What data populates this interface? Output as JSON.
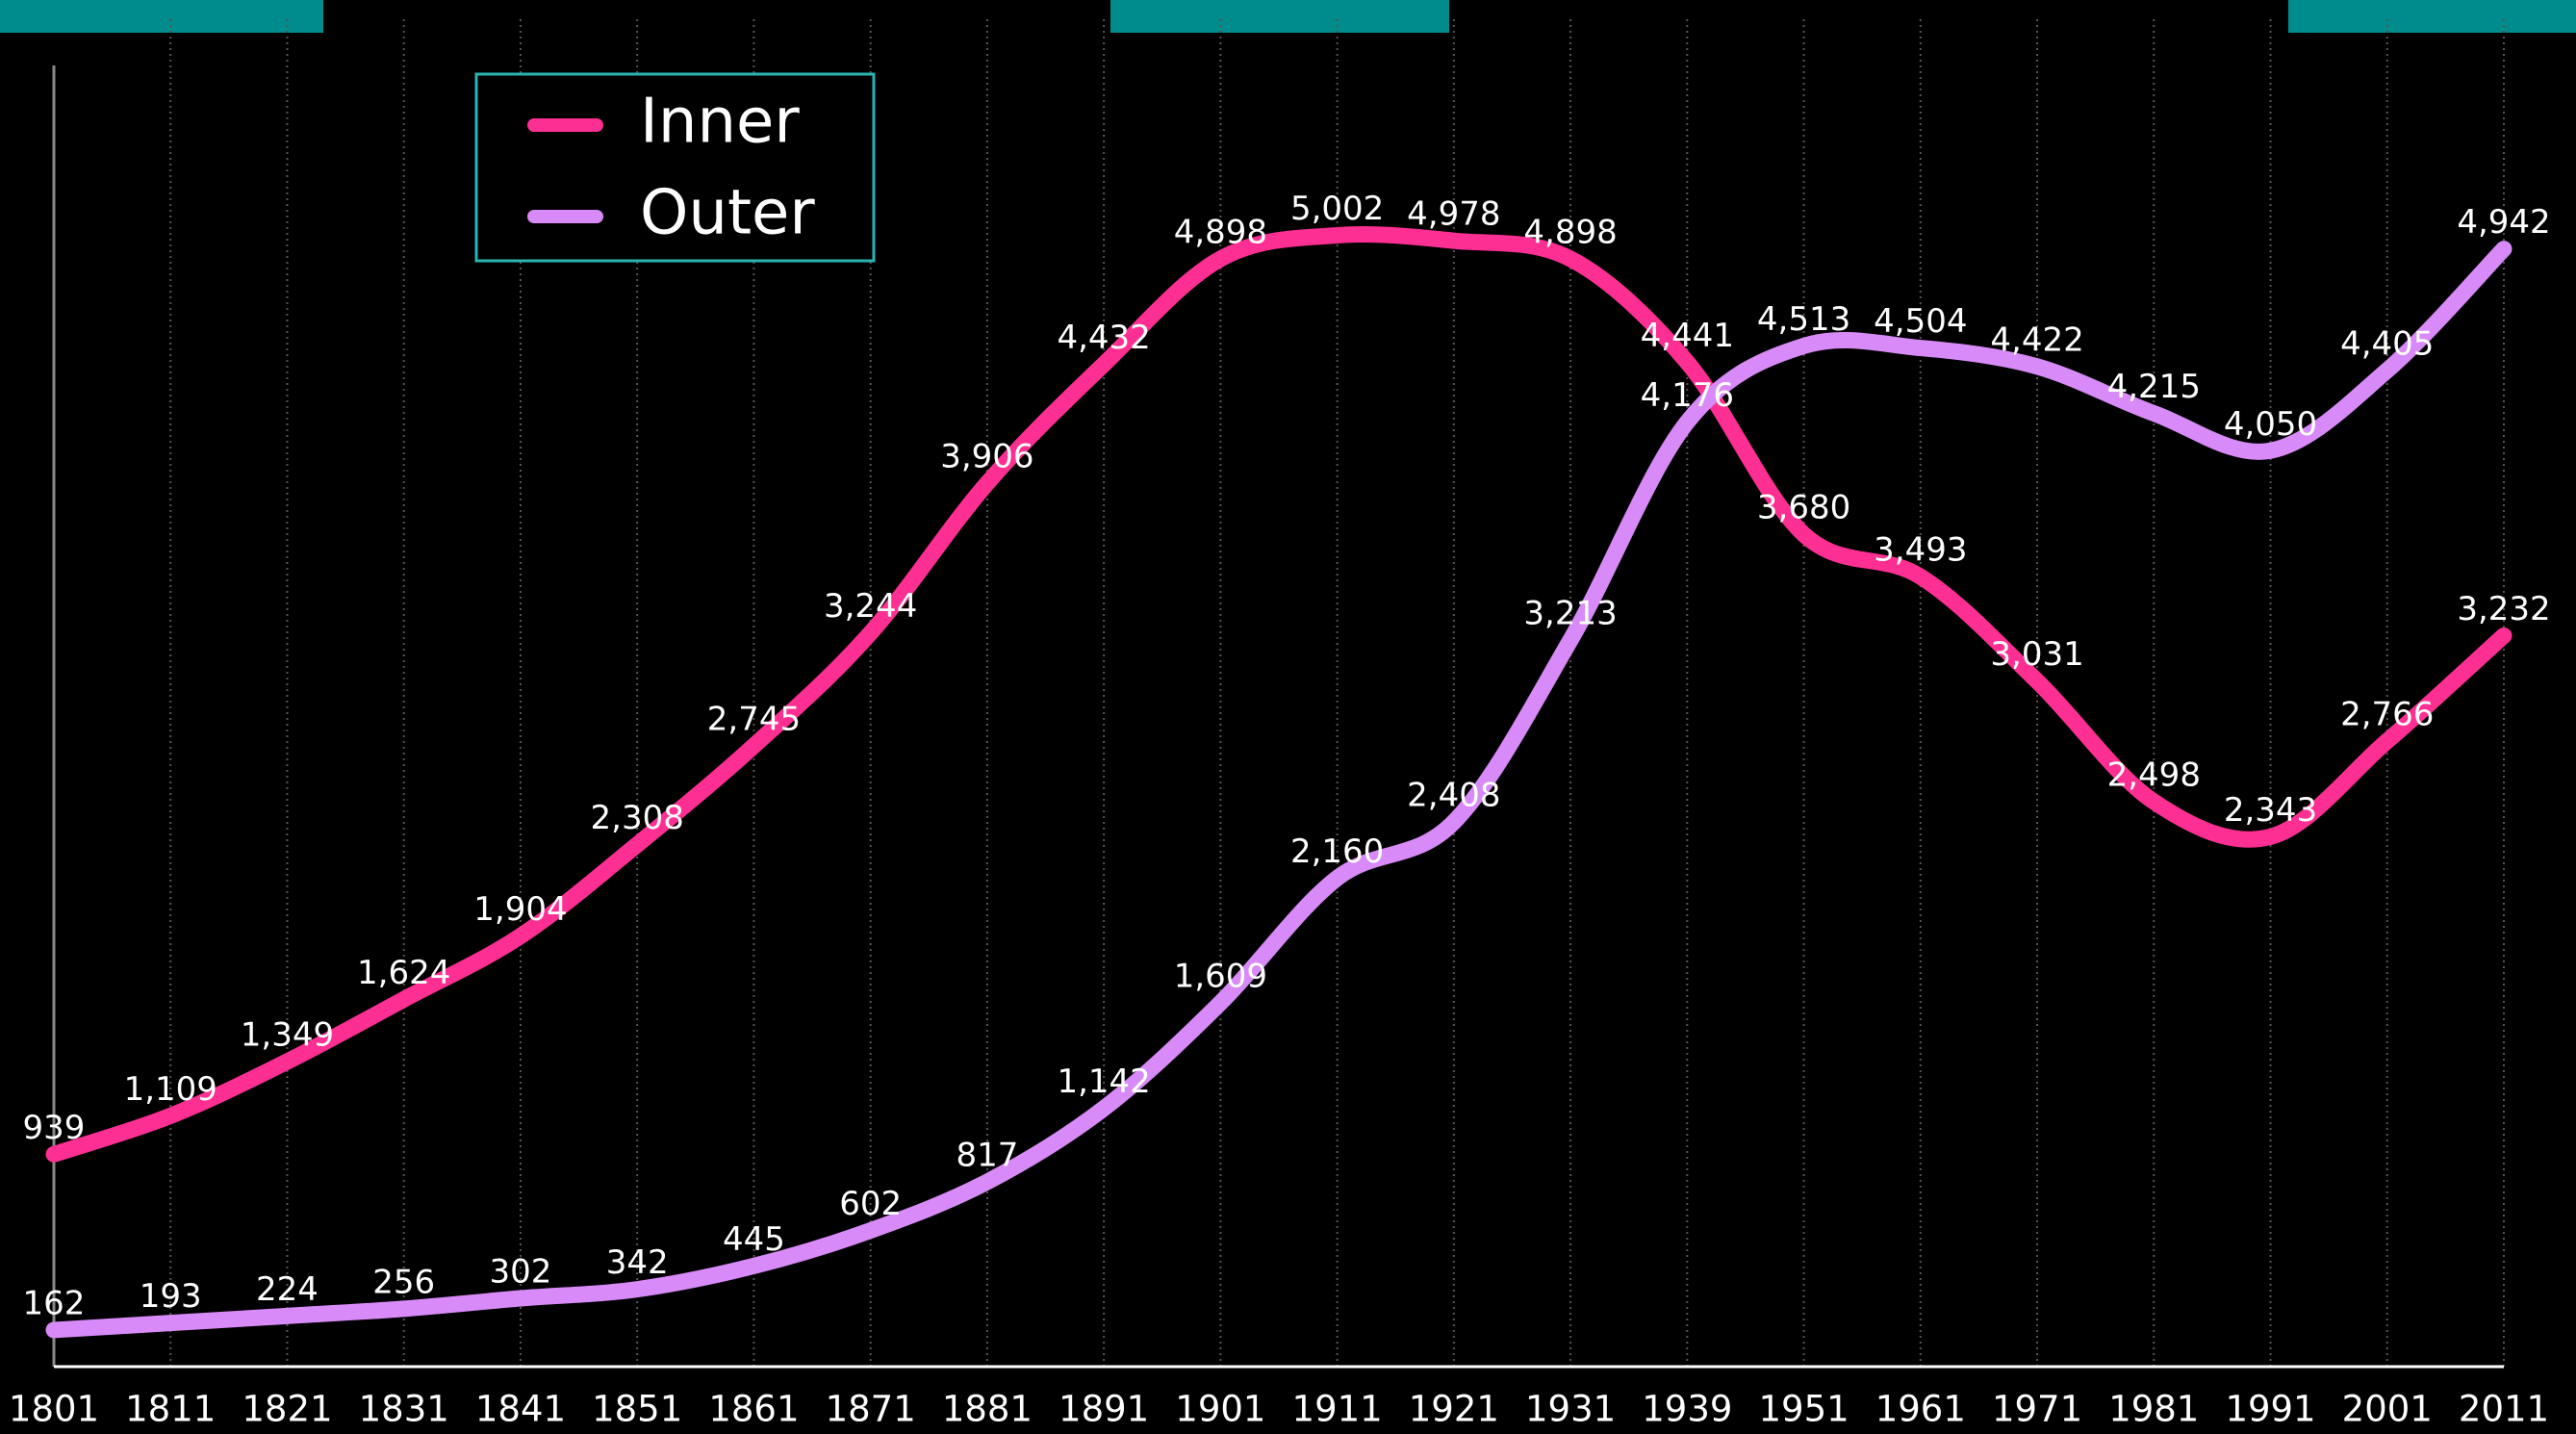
{
  "chart_data": {
    "type": "line",
    "categories": [
      "1801",
      "1811",
      "1821",
      "1831",
      "1841",
      "1851",
      "1861",
      "1871",
      "1881",
      "1891",
      "1901",
      "1911",
      "1921",
      "1931",
      "1939",
      "1951",
      "1961",
      "1971",
      "1981",
      "1991",
      "2001",
      "2011"
    ],
    "series": [
      {
        "name": "Inner",
        "color": "#fe2f92",
        "values": [
          939,
          1109,
          1349,
          1624,
          1904,
          2308,
          2745,
          3244,
          3906,
          4432,
          4898,
          5002,
          4978,
          4898,
          4441,
          3680,
          3493,
          3031,
          2498,
          2343,
          2766,
          3232
        ],
        "value_labels": [
          "939",
          "1,109",
          "1,349",
          "1,624",
          "1,904",
          "2,308",
          "2,745",
          "3,244",
          "3,906",
          "4,432",
          "4,898",
          "5,002",
          "4,978",
          "4,898",
          "4,441",
          "3,680",
          "3,493",
          "3,031",
          "2,498",
          "2,343",
          "2,766",
          "3,232"
        ]
      },
      {
        "name": "Outer",
        "color": "#d88af8",
        "values": [
          162,
          193,
          224,
          256,
          302,
          342,
          445,
          602,
          817,
          1142,
          1609,
          2160,
          2408,
          3213,
          4176,
          4513,
          4504,
          4422,
          4215,
          4050,
          4405,
          4942
        ],
        "value_labels": [
          "162",
          "193",
          "224",
          "256",
          "302",
          "342",
          "445",
          "602",
          "817",
          "1,142",
          "1,609",
          "2,160",
          "2,408",
          "3,213",
          "4,176",
          "4,513",
          "4,504",
          "4,422",
          "4,215",
          "4,050",
          "4,405",
          "4,942"
        ]
      }
    ],
    "ylim": [
      0,
      6000
    ],
    "grid": true,
    "legend": "top-left"
  }
}
